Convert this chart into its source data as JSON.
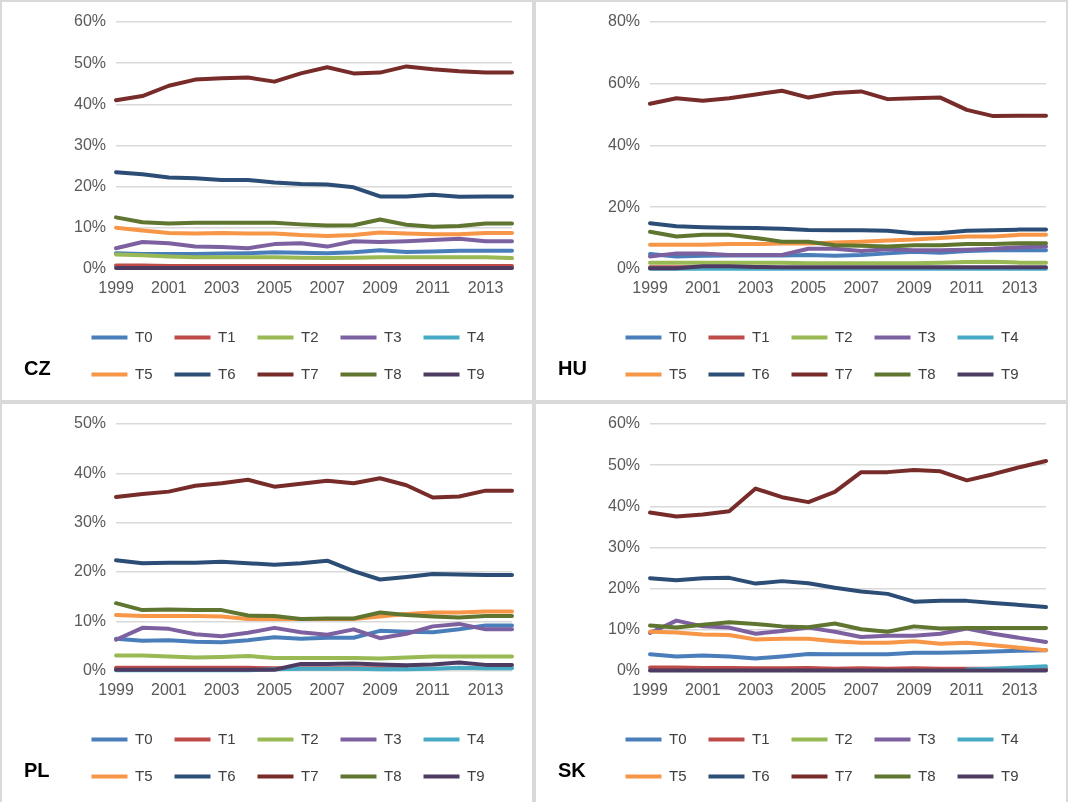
{
  "chart_data": [
    {
      "type": "line",
      "title": "CZ",
      "categories": [
        "1999",
        null,
        "2001",
        null,
        "2003",
        null,
        "2005",
        null,
        "2007",
        null,
        "2009",
        null,
        "2011",
        null,
        "2013",
        null
      ],
      "ylim": [
        0,
        60
      ],
      "yticks": [
        {
          "value": 0,
          "label": "0%"
        },
        {
          "value": 10,
          "label": "10%"
        },
        {
          "value": 20,
          "label": "20%"
        },
        {
          "value": 30,
          "label": "30%"
        },
        {
          "value": 40,
          "label": "40%"
        },
        {
          "value": 50,
          "label": "50%"
        },
        {
          "value": 60,
          "label": "60%"
        }
      ],
      "grid": "y",
      "legend": "bottom",
      "marker": "none",
      "line_style": "solid",
      "series": [
        {
          "name": "T0",
          "color": "#4a7ebb",
          "values": [
            3.8,
            3.6,
            3.6,
            3.6,
            3.7,
            3.8,
            4,
            3.9,
            3.8,
            4,
            4.5,
            4.1,
            4.2,
            4.4,
            4.4,
            4.4
          ]
        },
        {
          "name": "T1",
          "color": "#be4b48",
          "values": [
            0.8,
            0.8,
            0.7,
            0.7,
            0.7,
            0.7,
            0.7,
            0.7,
            0.7,
            0.7,
            0.7,
            0.7,
            0.7,
            0.7,
            0.7,
            0.7
          ]
        },
        {
          "name": "T2",
          "color": "#98b954",
          "values": [
            3.5,
            3.3,
            3,
            2.8,
            2.8,
            2.8,
            2.8,
            2.7,
            2.6,
            2.7,
            2.8,
            2.8,
            2.8,
            2.8,
            2.8,
            2.6
          ]
        },
        {
          "name": "T3",
          "color": "#7d60a0",
          "values": [
            5,
            6.5,
            6.2,
            5.4,
            5.3,
            5,
            6,
            6.2,
            5.4,
            6.7,
            6.5,
            6.7,
            7,
            7.3,
            6.7,
            6.7
          ]
        },
        {
          "name": "T4",
          "color": "#46aac5",
          "values": [
            null,
            null,
            null,
            null,
            null,
            null,
            null,
            null,
            null,
            null,
            null,
            null,
            null,
            null,
            null,
            null
          ]
        },
        {
          "name": "T5",
          "color": "#f79646",
          "values": [
            10,
            9.3,
            8.7,
            8.6,
            8.7,
            8.6,
            8.6,
            8.2,
            8,
            8.2,
            8.8,
            8.6,
            8.4,
            8.4,
            8.7,
            8.7
          ]
        },
        {
          "name": "T6",
          "color": "#2c4d75",
          "values": [
            23.5,
            23,
            22.2,
            22,
            21.6,
            21.6,
            21,
            20.6,
            20.5,
            19.8,
            17.6,
            17.6,
            18,
            17.5,
            17.6,
            17.6
          ]
        },
        {
          "name": "T7",
          "color": "#772c2a",
          "values": [
            41,
            42,
            44.5,
            46,
            46.3,
            46.5,
            45.5,
            47.5,
            49,
            47.5,
            47.7,
            49.2,
            48.5,
            48,
            47.7,
            47.7
          ]
        },
        {
          "name": "T8",
          "color": "#5f7530",
          "values": [
            12.5,
            11.3,
            11,
            11.2,
            11.2,
            11.2,
            11.2,
            10.8,
            10.5,
            10.6,
            12,
            10.7,
            10.2,
            10.4,
            11,
            11
          ]
        },
        {
          "name": "T9",
          "color": "#4d3b62",
          "values": [
            0.2,
            0.2,
            0.2,
            0.2,
            0.2,
            0.2,
            0.2,
            0.2,
            0.2,
            0.2,
            0.2,
            0.2,
            0.2,
            0.2,
            0.2,
            0.2
          ]
        }
      ]
    },
    {
      "type": "line",
      "title": "HU",
      "categories": [
        "1999",
        null,
        "2001",
        null,
        "2003",
        null,
        "2005",
        null,
        "2007",
        null,
        "2009",
        null,
        "2011",
        null,
        "2013",
        null
      ],
      "ylim": [
        0,
        80
      ],
      "yticks": [
        {
          "value": 0,
          "label": "0%"
        },
        {
          "value": 20,
          "label": "20%"
        },
        {
          "value": 40,
          "label": "40%"
        },
        {
          "value": 60,
          "label": "60%"
        },
        {
          "value": 80,
          "label": "80%"
        }
      ],
      "grid": "y",
      "legend": "bottom",
      "marker": "none",
      "line_style": "solid",
      "series": [
        {
          "name": "T0",
          "color": "#4a7ebb",
          "values": [
            4.8,
            4,
            4.2,
            4.3,
            4.3,
            4.3,
            4.5,
            4.2,
            4.5,
            5,
            5.5,
            5.2,
            5.8,
            6,
            6,
            6
          ]
        },
        {
          "name": "T1",
          "color": "#be4b48",
          "values": [
            0.5,
            0.5,
            0.5,
            null,
            null,
            null,
            null,
            null,
            null,
            null,
            null,
            null,
            null,
            null,
            null,
            null
          ]
        },
        {
          "name": "T2",
          "color": "#98b954",
          "values": [
            2,
            2,
            2,
            2,
            2,
            2,
            1.8,
            1.8,
            1.8,
            1.8,
            1.8,
            2,
            2.2,
            2.3,
            2,
            2
          ]
        },
        {
          "name": "T3",
          "color": "#7d60a0",
          "values": [
            4,
            5,
            5,
            4.5,
            4.5,
            4.5,
            6.5,
            6.5,
            5.8,
            6.3,
            6,
            6,
            6.2,
            6.5,
            7,
            7.2
          ]
        },
        {
          "name": "T4",
          "color": "#46aac5",
          "values": [
            0,
            0,
            0,
            0,
            0,
            0,
            0,
            0,
            0,
            0,
            0,
            0,
            0,
            0,
            0,
            0
          ]
        },
        {
          "name": "T5",
          "color": "#f79646",
          "values": [
            7.8,
            7.8,
            7.8,
            8,
            8,
            8.2,
            8.2,
            8.5,
            8.8,
            9.2,
            9.5,
            10,
            10.5,
            10.5,
            11,
            11
          ]
        },
        {
          "name": "T6",
          "color": "#2c4d75",
          "values": [
            14.8,
            13.8,
            13.5,
            13.3,
            13.2,
            13,
            12.6,
            12.5,
            12.5,
            12.3,
            11.5,
            11.6,
            12.3,
            12.5,
            12.7,
            12.7
          ]
        },
        {
          "name": "T7",
          "color": "#772c2a",
          "values": [
            53.5,
            55.3,
            54.5,
            55.3,
            56.5,
            57.7,
            55.5,
            57,
            57.5,
            55,
            55.3,
            55.5,
            51.5,
            49.5,
            49.6,
            49.6
          ]
        },
        {
          "name": "T8",
          "color": "#5f7530",
          "values": [
            12,
            10.5,
            11,
            11,
            10,
            8.8,
            8.8,
            7.6,
            7.5,
            7.2,
            7.6,
            7.6,
            8,
            8,
            8.3,
            8.3
          ]
        },
        {
          "name": "T9",
          "color": "#4d3b62",
          "values": [
            0.2,
            0.2,
            0.8,
            0.8,
            0.6,
            0.5,
            0.5,
            0.5,
            0.5,
            0.5,
            0.5,
            0.5,
            0.5,
            0.5,
            0.5,
            0.5
          ]
        }
      ]
    },
    {
      "type": "line",
      "title": "PL",
      "categories": [
        "1999",
        null,
        "2001",
        null,
        "2003",
        null,
        "2005",
        null,
        "2007",
        null,
        "2009",
        null,
        "2011",
        null,
        "2013",
        null
      ],
      "ylim": [
        0,
        50
      ],
      "yticks": [
        {
          "value": 0,
          "label": "0%"
        },
        {
          "value": 10,
          "label": "10%"
        },
        {
          "value": 20,
          "label": "20%"
        },
        {
          "value": 30,
          "label": "30%"
        },
        {
          "value": 40,
          "label": "40%"
        },
        {
          "value": 50,
          "label": "50%"
        }
      ],
      "grid": "y",
      "legend": "bottom",
      "marker": "none",
      "line_style": "solid",
      "series": [
        {
          "name": "T0",
          "color": "#4a7ebb",
          "values": [
            6.5,
            6.1,
            6.2,
            5.9,
            5.8,
            6.2,
            6.8,
            6.5,
            6.7,
            6.7,
            8.1,
            7.9,
            7.8,
            8.4,
            9.2,
            9.2
          ]
        },
        {
          "name": "T1",
          "color": "#be4b48",
          "values": [
            0.6,
            0.6,
            0.6,
            0.6,
            0.6,
            0.6,
            0.5,
            0.5,
            0.5,
            0.5,
            0.5,
            0.5,
            null,
            null,
            null,
            null
          ]
        },
        {
          "name": "T2",
          "color": "#98b954",
          "values": [
            3.1,
            3.1,
            2.9,
            2.7,
            2.8,
            3,
            2.6,
            2.6,
            2.6,
            2.6,
            2.5,
            2.7,
            2.9,
            2.9,
            2.9,
            2.9
          ]
        },
        {
          "name": "T3",
          "color": "#7d60a0",
          "values": [
            6.3,
            8.7,
            8.5,
            7.4,
            7,
            7.7,
            8.7,
            7.8,
            7.3,
            8.4,
            6.6,
            7.5,
            9,
            9.5,
            8.4,
            8.4
          ]
        },
        {
          "name": "T4",
          "color": "#46aac5",
          "values": [
            0.1,
            0.1,
            0.1,
            0.1,
            0.1,
            0.1,
            0.3,
            0.4,
            0.4,
            0.4,
            0.3,
            0.3,
            0.4,
            0.6,
            0.5,
            0.5
          ]
        },
        {
          "name": "T5",
          "color": "#f79646",
          "values": [
            11.3,
            11.1,
            11.1,
            11.1,
            11,
            10.5,
            10.5,
            10.5,
            10.5,
            10.5,
            11,
            11.5,
            11.8,
            11.8,
            12,
            12
          ]
        },
        {
          "name": "T6",
          "color": "#2c4d75",
          "values": [
            22.4,
            21.8,
            21.9,
            21.9,
            22.1,
            21.8,
            21.5,
            21.8,
            22.3,
            20.2,
            18.5,
            19,
            19.6,
            19.5,
            19.4,
            19.4
          ]
        },
        {
          "name": "T7",
          "color": "#772c2a",
          "values": [
            35.2,
            35.8,
            36.3,
            37.5,
            38,
            38.7,
            37.3,
            37.9,
            38.5,
            38,
            39,
            37.6,
            35.1,
            35.3,
            36.5,
            36.5
          ]
        },
        {
          "name": "T8",
          "color": "#5f7530",
          "values": [
            13.7,
            12.3,
            12.4,
            12.3,
            12.3,
            11.2,
            11.1,
            10.5,
            10.6,
            10.6,
            11.8,
            11.3,
            11,
            10.8,
            11.1,
            11.1
          ]
        },
        {
          "name": "T9",
          "color": "#4d3b62",
          "values": [
            0.2,
            0.2,
            0.2,
            0.2,
            0.2,
            0.2,
            0.2,
            1.4,
            1.4,
            1.5,
            1.3,
            1.1,
            1.3,
            1.7,
            1.2,
            1.2
          ]
        }
      ]
    },
    {
      "type": "line",
      "title": "SK",
      "categories": [
        "1999",
        null,
        "2001",
        null,
        "2003",
        null,
        "2005",
        null,
        "2007",
        null,
        "2009",
        null,
        "2011",
        null,
        "2013",
        null
      ],
      "ylim": [
        0,
        60
      ],
      "yticks": [
        {
          "value": 0,
          "label": "0%"
        },
        {
          "value": 10,
          "label": "10%"
        },
        {
          "value": 20,
          "label": "20%"
        },
        {
          "value": 30,
          "label": "30%"
        },
        {
          "value": 40,
          "label": "40%"
        },
        {
          "value": 50,
          "label": "50%"
        },
        {
          "value": 60,
          "label": "60%"
        }
      ],
      "grid": "y",
      "legend": "bottom",
      "marker": "none",
      "line_style": "solid",
      "series": [
        {
          "name": "T0",
          "color": "#4a7ebb",
          "values": [
            4,
            3.5,
            3.7,
            3.5,
            3,
            3.5,
            4.1,
            4,
            4,
            4,
            4.4,
            4.4,
            4.5,
            4.7,
            4.9,
            5
          ]
        },
        {
          "name": "T1",
          "color": "#be4b48",
          "values": [
            0.8,
            0.8,
            0.7,
            0.7,
            0.6,
            0.6,
            0.7,
            0.5,
            0.6,
            0.5,
            0.6,
            0.5,
            0.5,
            0.5,
            0.5,
            0.5
          ]
        },
        {
          "name": "T2",
          "color": "#98b954",
          "values": [
            null,
            null,
            null,
            null,
            null,
            null,
            null,
            null,
            null,
            null,
            null,
            null,
            null,
            null,
            null,
            null
          ]
        },
        {
          "name": "T3",
          "color": "#7d60a0",
          "values": [
            9.2,
            12.2,
            10.8,
            10.5,
            9,
            9.7,
            10.5,
            9.5,
            8.2,
            8.5,
            8.5,
            9,
            10.3,
            9,
            8,
            7
          ]
        },
        {
          "name": "T4",
          "color": "#46aac5",
          "values": [
            null,
            null,
            null,
            null,
            null,
            null,
            null,
            null,
            null,
            null,
            null,
            null,
            0.3,
            0.5,
            0.8,
            1.1
          ]
        },
        {
          "name": "T5",
          "color": "#f79646",
          "values": [
            9.5,
            9.3,
            8.8,
            8.7,
            7.6,
            7.8,
            7.8,
            7.2,
            6.8,
            6.8,
            7.2,
            6.6,
            6.8,
            6.2,
            5.6,
            5
          ]
        },
        {
          "name": "T6",
          "color": "#2c4d75",
          "values": [
            22.5,
            22,
            22.5,
            22.6,
            21.2,
            21.8,
            21.3,
            20.2,
            19.3,
            18.7,
            16.8,
            17,
            17,
            16.5,
            16,
            15.5
          ]
        },
        {
          "name": "T7",
          "color": "#772c2a",
          "values": [
            38.5,
            37.5,
            38,
            38.8,
            44.3,
            42.2,
            41,
            43.5,
            48.3,
            48.3,
            48.8,
            48.5,
            46.3,
            47.8,
            49.5,
            51
          ]
        },
        {
          "name": "T8",
          "color": "#5f7530",
          "values": [
            11,
            10.5,
            11.2,
            11.8,
            11.4,
            10.8,
            10.6,
            11.5,
            10.1,
            9.5,
            10.8,
            10.3,
            10.4,
            10.4,
            10.4,
            10.4
          ]
        },
        {
          "name": "T9",
          "color": "#4d3b62",
          "values": [
            0.1,
            0.1,
            0.1,
            0.1,
            0.1,
            0.1,
            0.1,
            0.1,
            0.1,
            0.1,
            0.1,
            0.1,
            0.1,
            0.1,
            0.1,
            0.1
          ]
        }
      ]
    }
  ]
}
